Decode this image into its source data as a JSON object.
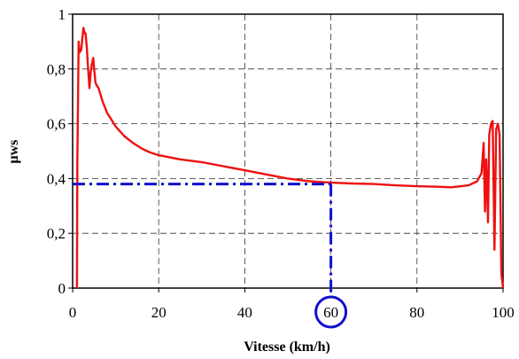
{
  "chart_data": {
    "type": "line",
    "xlabel": "Vitesse (km/h)",
    "ylabel": "μws",
    "xlim": [
      0,
      100
    ],
    "ylim": [
      0,
      1
    ],
    "x_ticks": [
      "0",
      "20",
      "40",
      "60",
      "80",
      "100"
    ],
    "y_ticks": [
      "0",
      "0,2",
      "0,4",
      "0,6",
      "0,8",
      "1"
    ],
    "grid": true,
    "highlighted_tick": "60",
    "series": [
      {
        "color": "#ee1111",
        "x": [
          1.0,
          1.1,
          1.4,
          1.6,
          2.0,
          2.5,
          2.8,
          3.0,
          3.3,
          3.6,
          3.9,
          4.2,
          4.5,
          4.8,
          5.0,
          5.3,
          5.6,
          6.0,
          7,
          8,
          10,
          12,
          14,
          16,
          18,
          20,
          25,
          30,
          35,
          40,
          45,
          50,
          55,
          58,
          60,
          65,
          70,
          75,
          80,
          85,
          88,
          92,
          94,
          95,
          95.5,
          95.8,
          96.1,
          96.5,
          96.8,
          97.2,
          97.6,
          98.0,
          98.4,
          98.8,
          99.2,
          99.6,
          100
        ],
        "y": [
          0.0,
          0.45,
          0.9,
          0.86,
          0.87,
          0.95,
          0.93,
          0.93,
          0.88,
          0.8,
          0.73,
          0.79,
          0.82,
          0.84,
          0.8,
          0.75,
          0.74,
          0.73,
          0.68,
          0.64,
          0.59,
          0.555,
          0.53,
          0.51,
          0.495,
          0.485,
          0.47,
          0.46,
          0.445,
          0.43,
          0.415,
          0.4,
          0.39,
          0.387,
          0.385,
          0.382,
          0.38,
          0.375,
          0.372,
          0.37,
          0.368,
          0.375,
          0.39,
          0.42,
          0.53,
          0.28,
          0.47,
          0.24,
          0.56,
          0.6,
          0.61,
          0.14,
          0.58,
          0.6,
          0.56,
          0.05,
          0.0
        ]
      }
    ],
    "guide": {
      "color": "#1111cc",
      "x": 60,
      "y": 0.38
    }
  }
}
